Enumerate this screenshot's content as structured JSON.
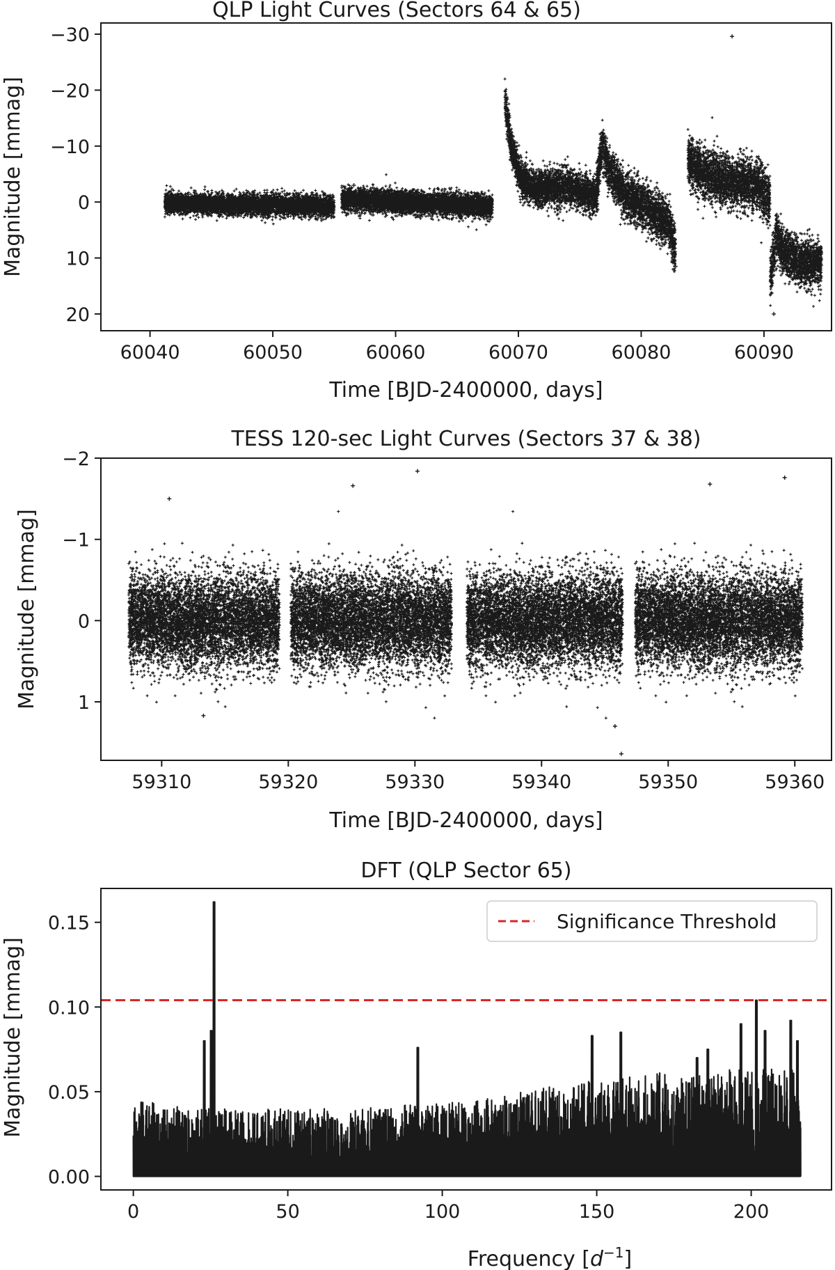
{
  "chart_data": [
    {
      "type": "scatter",
      "title": "QLP Light Curves (Sectors 64 & 65)",
      "xlabel": "Time [BJD-2400000, days]",
      "ylabel": "Magnitude [mmag]",
      "xlim": [
        60036,
        60095.5
      ],
      "ylim": [
        23,
        -32
      ],
      "y_inverted": true,
      "xticks": [
        60040,
        60050,
        60060,
        60070,
        60080,
        60090
      ],
      "yticks": [
        -30,
        -20,
        -10,
        0,
        10,
        20
      ],
      "xtick_labels": [
        "60040",
        "60050",
        "60060",
        "60070",
        "60080",
        "60090"
      ],
      "ytick_labels": [
        "−30",
        "−20",
        "−10",
        "0",
        "10",
        "20"
      ],
      "marker": "+",
      "color": "#1a1a1a",
      "segments": [
        {
          "x_start": 60041.2,
          "x_end": 60055.0,
          "trend": [
            [
              60041.2,
              0.2
            ],
            [
              60050,
              0.5
            ],
            [
              60055,
              0.8
            ]
          ],
          "scatter": 0.9
        },
        {
          "x_start": 60055.6,
          "x_end": 60067.9,
          "trend": [
            [
              60055.6,
              -0.6
            ],
            [
              60060,
              0.0
            ],
            [
              60067.9,
              0.8
            ]
          ],
          "scatter": 1.0
        },
        {
          "x_start": 60068.9,
          "x_end": 60076.3,
          "trend": [
            [
              60068.9,
              -18.0
            ],
            [
              60069.4,
              -10.0
            ],
            [
              60070.2,
              -4.0
            ],
            [
              60071.5,
              -2.5
            ],
            [
              60074.0,
              -2.8
            ],
            [
              60076.3,
              -1.0
            ]
          ],
          "scatter": 1.6
        },
        {
          "x_start": 60076.3,
          "x_end": 60082.8,
          "trend": [
            [
              60076.3,
              -1.0
            ],
            [
              60076.8,
              -10.0
            ],
            [
              60077.5,
              -5.0
            ],
            [
              60078.5,
              -2.0
            ],
            [
              60081.0,
              2.0
            ],
            [
              60082.3,
              4.0
            ],
            [
              60082.8,
              9.0
            ]
          ],
          "scatter": 2.0
        },
        {
          "x_start": 60083.8,
          "x_end": 60090.5,
          "trend": [
            [
              60083.8,
              -8.0
            ],
            [
              60085.0,
              -5.0
            ],
            [
              60087.5,
              -3.5
            ],
            [
              60089.5,
              -3.0
            ],
            [
              60090.5,
              0.0
            ]
          ],
          "scatter": 2.2
        },
        {
          "x_start": 60090.5,
          "x_end": 60094.7,
          "trend": [
            [
              60090.5,
              14.0
            ],
            [
              60091.0,
              6.0
            ],
            [
              60091.6,
              9.0
            ],
            [
              60093.0,
              11.0
            ],
            [
              60094.7,
              11.0
            ]
          ],
          "scatter": 2.0
        }
      ],
      "outliers": [
        [
          60087.4,
          -29.6
        ],
        [
          60056.6,
          -3.0
        ],
        [
          60090.8,
          20.0
        ],
        [
          60082.8,
          11.5
        ]
      ]
    },
    {
      "type": "scatter",
      "title": "TESS 120-sec Light Curves (Sectors 37 & 38)",
      "xlabel": "Time [BJD-2400000, days]",
      "ylabel": "Magnitude [mmag]",
      "xlim": [
        59305.2,
        59362.9
      ],
      "ylim": [
        1.72,
        -2.0
      ],
      "y_inverted": true,
      "xticks": [
        59310,
        59320,
        59330,
        59340,
        59350,
        59360
      ],
      "yticks": [
        -2,
        -1,
        0,
        1
      ],
      "xtick_labels": [
        "59310",
        "59320",
        "59330",
        "59340",
        "59350",
        "59360"
      ],
      "ytick_labels": [
        "−2",
        "−1",
        "0",
        "1"
      ],
      "marker": "+",
      "color": "#1a1a1a",
      "segments": [
        {
          "x_start": 59307.4,
          "x_end": 59319.3,
          "mean": 0.0,
          "scatter": 0.28
        },
        {
          "x_start": 59320.2,
          "x_end": 59332.9,
          "mean": 0.0,
          "scatter": 0.28
        },
        {
          "x_start": 59334.1,
          "x_end": 59346.4,
          "mean": 0.0,
          "scatter": 0.28
        },
        {
          "x_start": 59347.4,
          "x_end": 59360.6,
          "mean": 0.0,
          "scatter": 0.28
        }
      ],
      "outliers": [
        [
          59330.2,
          -1.84
        ],
        [
          59359.2,
          -1.76
        ],
        [
          59310.6,
          -1.5
        ],
        [
          59325.1,
          -1.66
        ],
        [
          59353.3,
          -1.68
        ],
        [
          59346.3,
          1.64
        ],
        [
          59313.3,
          1.17
        ],
        [
          59345.8,
          1.3
        ]
      ]
    },
    {
      "type": "line",
      "title": "DFT (QLP Sector 65)",
      "xlabel": "Frequency [d⁻¹]",
      "ylabel": "Magnitude [mmag]",
      "xlim": [
        -10.5,
        226
      ],
      "ylim": [
        -0.008,
        0.17
      ],
      "xticks": [
        0,
        50,
        100,
        150,
        200
      ],
      "yticks": [
        0.0,
        0.05,
        0.1,
        0.15
      ],
      "xtick_labels": [
        "0",
        "50",
        "100",
        "150",
        "200"
      ],
      "ytick_labels": [
        "0.00",
        "0.05",
        "0.10",
        "0.15"
      ],
      "color": "#1a1a1a",
      "freq_range": [
        0,
        216
      ],
      "noise_envelope": [
        [
          0,
          0.045
        ],
        [
          25,
          0.04
        ],
        [
          60,
          0.04
        ],
        [
          100,
          0.043
        ],
        [
          120,
          0.048
        ],
        [
          150,
          0.058
        ],
        [
          180,
          0.063
        ],
        [
          216,
          0.065
        ]
      ],
      "peaks": [
        [
          26.1,
          0.162
        ],
        [
          23.0,
          0.08
        ],
        [
          25.2,
          0.086
        ],
        [
          92.1,
          0.076
        ],
        [
          148.5,
          0.083
        ],
        [
          157.8,
          0.085
        ],
        [
          196.7,
          0.09
        ],
        [
          201.7,
          0.104
        ],
        [
          212.8,
          0.092
        ],
        [
          215.0,
          0.08
        ],
        [
          186.0,
          0.075
        ],
        [
          182.5,
          0.07
        ],
        [
          204.5,
          0.086
        ]
      ],
      "threshold": 0.104,
      "threshold_color": "#d62728",
      "legend": {
        "label": "Significance Threshold",
        "position": "upper right"
      }
    }
  ]
}
